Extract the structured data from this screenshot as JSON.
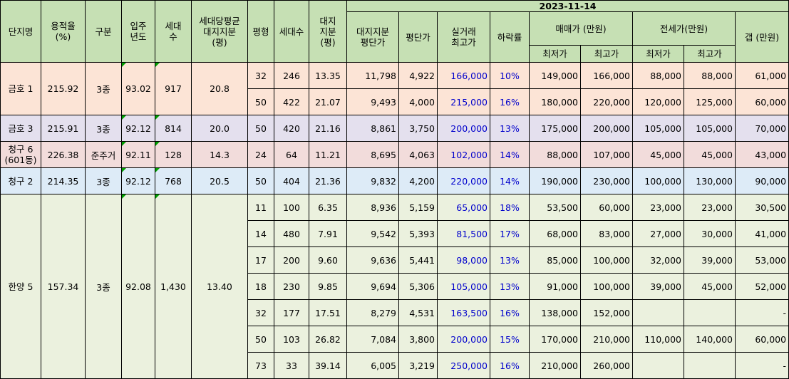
{
  "date": "2023-11-14",
  "headers": {
    "name": "단지명",
    "far": "용적율\n(%)",
    "zone": "구분",
    "year": "입주\n년도",
    "units": "세대\n수",
    "avg_land": "세대당평균\n대지지분\n(평)",
    "pyeong": "평형",
    "count": "세대수",
    "land": "대지\n지분\n(평)",
    "land_price": "대지지분\n평단가",
    "price_per_pyeong": "평단가",
    "max_trade": "실거래\n최고가",
    "drop": "하락률",
    "sale": "매매가 (만원)",
    "jeonse": "전세가(만원)",
    "min": "최저가",
    "max": "최고가",
    "gap": "갭 (만원)"
  },
  "complexes": [
    {
      "name": "금호 1",
      "far": "215.92",
      "zone": "3종",
      "year": "93.02",
      "units": "917",
      "avg_land": "20.8",
      "theme": "peach",
      "rows": [
        {
          "p": "32",
          "n": "246",
          "land": "13.35",
          "lp": "11,798",
          "pp": "4,922",
          "max": "166,000",
          "drop": "10%",
          "smin": "149,000",
          "smax": "166,000",
          "jmin": "88,000",
          "jmax": "88,000",
          "gap": "61,000"
        },
        {
          "p": "50",
          "n": "422",
          "land": "21.07",
          "lp": "9,493",
          "pp": "4,000",
          "max": "215,000",
          "drop": "16%",
          "smin": "180,000",
          "smax": "220,000",
          "jmin": "120,000",
          "jmax": "125,000",
          "gap": "60,000"
        }
      ]
    },
    {
      "name": "금호 3",
      "far": "215.91",
      "zone": "3종",
      "year": "92.12",
      "units": "814",
      "avg_land": "20.0",
      "theme": "lav",
      "rows": [
        {
          "p": "50",
          "n": "420",
          "land": "21.16",
          "lp": "8,861",
          "pp": "3,750",
          "max": "200,000",
          "drop": "13%",
          "smin": "175,000",
          "smax": "200,000",
          "jmin": "105,000",
          "jmax": "105,000",
          "gap": "70,000"
        }
      ]
    },
    {
      "name": "청구 6\n(601동)",
      "far": "226.38",
      "zone": "준주거",
      "year": "92.11",
      "units": "128",
      "avg_land": "14.3",
      "theme": "pink",
      "rows": [
        {
          "p": "24",
          "n": "64",
          "land": "11.21",
          "lp": "8,695",
          "pp": "4,063",
          "max": "102,000",
          "drop": "14%",
          "smin": "88,000",
          "smax": "107,000",
          "jmin": "45,000",
          "jmax": "45,000",
          "gap": "43,000"
        }
      ]
    },
    {
      "name": "청구 2",
      "far": "214.35",
      "zone": "3종",
      "year": "92.12",
      "units": "768",
      "avg_land": "20.5",
      "theme": "sky",
      "rows": [
        {
          "p": "50",
          "n": "404",
          "land": "21.36",
          "lp": "9,832",
          "pp": "4,200",
          "max": "220,000",
          "drop": "14%",
          "smin": "190,000",
          "smax": "230,000",
          "jmin": "100,000",
          "jmax": "130,000",
          "gap": "90,000"
        }
      ]
    },
    {
      "name": "한양 5",
      "far": "157.34",
      "zone": "3종",
      "year": "92.08",
      "units": "1,430",
      "avg_land": "13.40",
      "theme": "cream",
      "rows": [
        {
          "p": "11",
          "n": "100",
          "land": "6.35",
          "lp": "8,936",
          "pp": "5,159",
          "max": "65,000",
          "drop": "18%",
          "smin": "53,500",
          "smax": "60,000",
          "jmin": "23,000",
          "jmax": "23,000",
          "gap": "30,500"
        },
        {
          "p": "14",
          "n": "480",
          "land": "7.91",
          "lp": "9,542",
          "pp": "5,393",
          "max": "81,500",
          "drop": "17%",
          "smin": "68,000",
          "smax": "83,000",
          "jmin": "27,000",
          "jmax": "30,000",
          "gap": "41,000"
        },
        {
          "p": "17",
          "n": "200",
          "land": "9.60",
          "lp": "9,636",
          "pp": "5,441",
          "max": "98,000",
          "drop": "13%",
          "smin": "85,000",
          "smax": "100,000",
          "jmin": "32,000",
          "jmax": "39,000",
          "gap": "53,000"
        },
        {
          "p": "18",
          "n": "230",
          "land": "9.85",
          "lp": "9,694",
          "pp": "5,306",
          "max": "105,000",
          "drop": "13%",
          "smin": "91,000",
          "smax": "100,000",
          "jmin": "39,000",
          "jmax": "45,000",
          "gap": "52,000"
        },
        {
          "p": "32",
          "n": "177",
          "land": "17.51",
          "lp": "8,279",
          "pp": "4,531",
          "max": "163,500",
          "drop": "16%",
          "smin": "138,000",
          "smax": "152,000",
          "jmin": "",
          "jmax": "",
          "gap": "-"
        },
        {
          "p": "50",
          "n": "103",
          "land": "26.82",
          "lp": "7,084",
          "pp": "3,800",
          "max": "200,000",
          "drop": "15%",
          "smin": "170,000",
          "smax": "210,000",
          "jmin": "110,000",
          "jmax": "140,000",
          "gap": "60,000"
        },
        {
          "p": "73",
          "n": "33",
          "land": "39.14",
          "lp": "6,005",
          "pp": "3,219",
          "max": "250,000",
          "drop": "16%",
          "smin": "210,000",
          "smax": "260,000",
          "jmin": "",
          "jmax": "",
          "gap": "-"
        }
      ]
    }
  ]
}
